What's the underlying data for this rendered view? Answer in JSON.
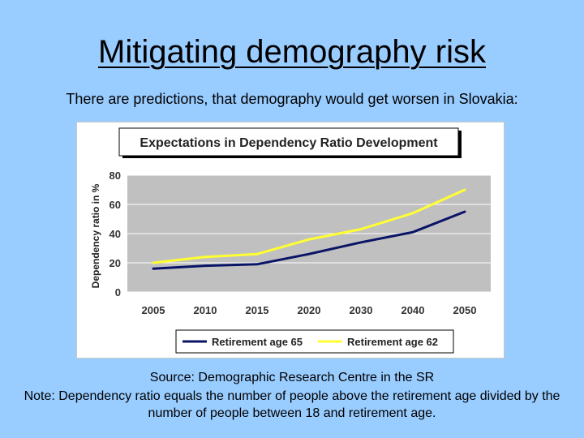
{
  "slide": {
    "title": "Mitigating demography risk",
    "subtitle": "There are predictions, that demography would get worsen in Slovakia:",
    "source": "Source: Demographic Research Centre in the SR",
    "note": "Note: Dependency ratio equals the number of people above the retirement age divided by the number of people between 18 and retirement age."
  },
  "chart_data": {
    "type": "line",
    "title": "Expectations in Dependency Ratio Development",
    "xlabel": "",
    "ylabel": "Dependency ratio in %",
    "categories": [
      "2005",
      "2010",
      "2015",
      "2020",
      "2030",
      "2040",
      "2050"
    ],
    "yticks": [
      "0",
      "20",
      "40",
      "60",
      "80"
    ],
    "ylim": [
      0,
      80
    ],
    "grid": true,
    "legend_position": "bottom",
    "series": [
      {
        "name": "Retirement age 65",
        "color": "#0a1466",
        "values": [
          16,
          18,
          19,
          26,
          34,
          41,
          55
        ]
      },
      {
        "name": "Retirement age 62",
        "color": "#ffff33",
        "values": [
          20,
          24,
          26,
          36,
          43,
          54,
          70
        ]
      }
    ],
    "colors": {
      "plot_bg": "#c0c0c0",
      "grid": "#ffffff",
      "axis_text": "#333333"
    }
  }
}
